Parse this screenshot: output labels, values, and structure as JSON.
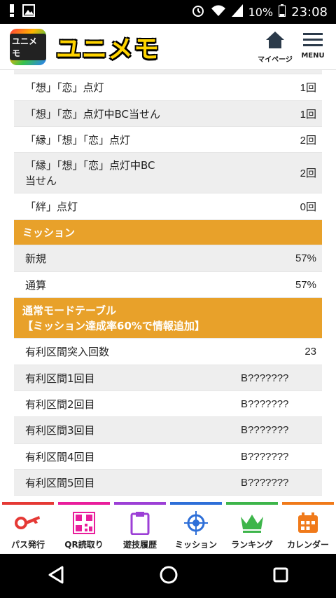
{
  "status_bar": {
    "battery_percent": "10%",
    "time": "23:08"
  },
  "header": {
    "logo_badge": "ユニメモ",
    "title": "ユニメモ",
    "mypage_label": "マイページ",
    "menu_label": "MENU"
  },
  "rows_top": [
    {
      "label": "「想」「恋」点灯",
      "value": "1回"
    },
    {
      "label": "「想」「恋」点灯中BC当せん",
      "value": "1回"
    },
    {
      "label": "「縁」「想」「恋」点灯",
      "value": "2回"
    },
    {
      "label": "「縁」「想」「恋」点灯中BC",
      "label2": "当せん",
      "value": "2回"
    },
    {
      "label": "「絆」点灯",
      "value": "0回"
    }
  ],
  "mission": {
    "title": "ミッション",
    "rows": [
      {
        "label": "新規",
        "value": "57%"
      },
      {
        "label": "通算",
        "value": "57%"
      }
    ]
  },
  "mode_table": {
    "title": "通常モードテーブル",
    "subtitle": "【ミッション達成率60%で情報追加】",
    "rows": [
      {
        "label": "有利区間突入回数",
        "value": "23"
      },
      {
        "label": "有利区間1回目",
        "mid": "B???????"
      },
      {
        "label": "有利区間2回目",
        "mid": "B???????"
      },
      {
        "label": "有利区間3回目",
        "mid": "B???????"
      },
      {
        "label": "有利区間4回目",
        "mid": "B???????"
      },
      {
        "label": "有利区間5回目",
        "mid": "B???????"
      }
    ]
  },
  "tabs": [
    {
      "label": "パス発行",
      "color": "#e53935",
      "icon": "key-icon"
    },
    {
      "label": "QR読取り",
      "color": "#e91e9c",
      "icon": "qr-icon"
    },
    {
      "label": "遊技履歴",
      "color": "#9c3fd6",
      "icon": "clipboard-icon"
    },
    {
      "label": "ミッション",
      "color": "#2e6fd8",
      "icon": "target-icon"
    },
    {
      "label": "ランキング",
      "color": "#3db54a",
      "icon": "crown-icon"
    },
    {
      "label": "カレンダー",
      "color": "#f07a1a",
      "icon": "calendar-icon"
    }
  ]
}
